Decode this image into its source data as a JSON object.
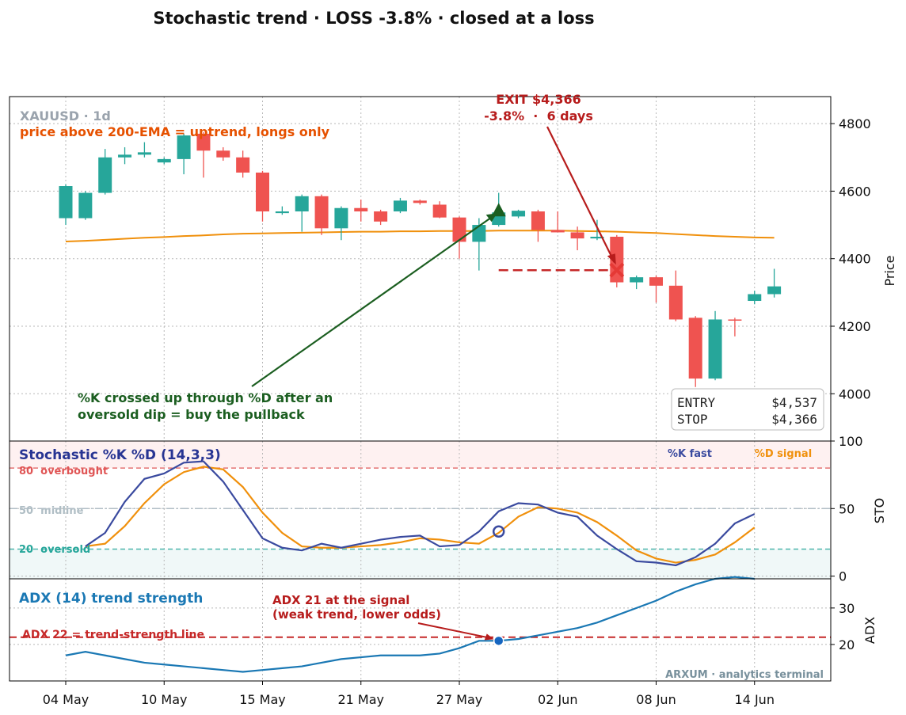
{
  "title": "Stochastic trend  ·  LOSS -3.8%  ·  closed at a loss",
  "colors": {
    "up": "#26a69a",
    "down": "#ef5350",
    "ema": "#f0900c",
    "k": "#3a4a9f",
    "d": "#f0900c",
    "adx": "#1a78b4",
    "accent_green": "#1b5e20",
    "accent_red": "#b71c1c",
    "brand": "#78909c"
  },
  "chart_data": [
    {
      "panel": "price",
      "type": "candlestick",
      "symbol_label": "XAUUSD · 1d",
      "subtitle": "price above 200-EMA = uptrend, longs only",
      "ylabel": "Price",
      "ylim": [
        3860,
        4880
      ],
      "yticks": [
        4000,
        4200,
        4400,
        4600,
        4800
      ],
      "grid": true,
      "x_tick_labels": [
        "04 May",
        "10 May",
        "15 May",
        "21 May",
        "27 May",
        "02 Jun",
        "08 Jun",
        "14 Jun"
      ],
      "x_tick_index": [
        0,
        5,
        10,
        15,
        20,
        25,
        30,
        35
      ],
      "candles": [
        {
          "o": 4520,
          "h": 4620,
          "l": 4500,
          "c": 4615
        },
        {
          "o": 4520,
          "h": 4600,
          "l": 4515,
          "c": 4595
        },
        {
          "o": 4595,
          "h": 4725,
          "l": 4590,
          "c": 4700
        },
        {
          "o": 4700,
          "h": 4730,
          "l": 4680,
          "c": 4708
        },
        {
          "o": 4708,
          "h": 4745,
          "l": 4700,
          "c": 4715
        },
        {
          "o": 4685,
          "h": 4700,
          "l": 4680,
          "c": 4695
        },
        {
          "o": 4695,
          "h": 4770,
          "l": 4650,
          "c": 4765
        },
        {
          "o": 4770,
          "h": 4775,
          "l": 4640,
          "c": 4720
        },
        {
          "o": 4720,
          "h": 4730,
          "l": 4690,
          "c": 4700
        },
        {
          "o": 4700,
          "h": 4720,
          "l": 4640,
          "c": 4655
        },
        {
          "o": 4655,
          "h": 4660,
          "l": 4510,
          "c": 4540
        },
        {
          "o": 4535,
          "h": 4555,
          "l": 4530,
          "c": 4540
        },
        {
          "o": 4540,
          "h": 4590,
          "l": 4480,
          "c": 4585
        },
        {
          "o": 4585,
          "h": 4590,
          "l": 4470,
          "c": 4490
        },
        {
          "o": 4490,
          "h": 4555,
          "l": 4455,
          "c": 4550
        },
        {
          "o": 4550,
          "h": 4575,
          "l": 4510,
          "c": 4540
        },
        {
          "o": 4540,
          "h": 4545,
          "l": 4500,
          "c": 4510
        },
        {
          "o": 4540,
          "h": 4580,
          "l": 4535,
          "c": 4572
        },
        {
          "o": 4572,
          "h": 4575,
          "l": 4560,
          "c": 4565
        },
        {
          "o": 4560,
          "h": 4570,
          "l": 4520,
          "c": 4522
        },
        {
          "o": 4522,
          "h": 4525,
          "l": 4400,
          "c": 4450
        },
        {
          "o": 4450,
          "h": 4520,
          "l": 4365,
          "c": 4500
        },
        {
          "o": 4500,
          "h": 4595,
          "l": 4495,
          "c": 4537
        },
        {
          "o": 4525,
          "h": 4545,
          "l": 4520,
          "c": 4542
        },
        {
          "o": 4540,
          "h": 4545,
          "l": 4450,
          "c": 4485
        },
        {
          "o": 4485,
          "h": 4540,
          "l": 4478,
          "c": 4478
        },
        {
          "o": 4478,
          "h": 4495,
          "l": 4425,
          "c": 4460
        },
        {
          "o": 4460,
          "h": 4515,
          "l": 4455,
          "c": 4465
        },
        {
          "o": 4465,
          "h": 4470,
          "l": 4315,
          "c": 4330
        },
        {
          "o": 4330,
          "h": 4350,
          "l": 4310,
          "c": 4345
        },
        {
          "o": 4345,
          "h": 4350,
          "l": 4270,
          "c": 4320
        },
        {
          "o": 4320,
          "h": 4365,
          "l": 4215,
          "c": 4220
        },
        {
          "o": 4225,
          "h": 4230,
          "l": 4020,
          "c": 4045
        },
        {
          "o": 4045,
          "h": 4245,
          "l": 4040,
          "c": 4220
        },
        {
          "o": 4220,
          "h": 4225,
          "l": 4170,
          "c": 4218
        },
        {
          "o": 4275,
          "h": 4305,
          "l": 4265,
          "c": 4295
        },
        {
          "o": 4295,
          "h": 4370,
          "l": 4285,
          "c": 4318
        }
      ],
      "ema200": [
        4451,
        4453,
        4456,
        4459,
        4462,
        4464,
        4467,
        4469,
        4472,
        4474,
        4475,
        4476,
        4477,
        4478,
        4479,
        4480,
        4480,
        4481,
        4481,
        4482,
        4482,
        4482,
        4483,
        4483,
        4483,
        4483,
        4482,
        4481,
        4480,
        4478,
        4476,
        4473,
        4470,
        4467,
        4465,
        4463,
        4462
      ],
      "entry": {
        "index": 22,
        "price": 4537
      },
      "exit": {
        "index": 28,
        "price": 4366,
        "label": "EXIT $4,366",
        "sublabel": "-3.8%  ·  6 days"
      },
      "stop_line": {
        "from_index": 22,
        "to_index": 28,
        "price": 4366
      },
      "annotation": "%K crossed up through %D after an oversold dip = buy the pullback",
      "info_box": [
        {
          "key": "ENTRY",
          "value": "$4,537"
        },
        {
          "key": "STOP",
          "value": "$4,366"
        }
      ]
    },
    {
      "panel": "stochastic",
      "type": "line",
      "title": "Stochastic %K %D (14,3,3)",
      "ylabel": "STO",
      "ylim": [
        -2,
        100
      ],
      "yticks": [
        0,
        50,
        100
      ],
      "levels": [
        {
          "value": 80,
          "label": "80  overbought"
        },
        {
          "value": 50,
          "label": "50  midline"
        },
        {
          "value": 20,
          "label": "20  oversold"
        }
      ],
      "series": [
        {
          "name": "%K fast",
          "values": [
            null,
            22,
            32,
            55,
            72,
            76,
            84,
            85,
            70,
            49,
            28,
            21,
            19,
            24,
            21,
            24,
            27,
            29,
            30,
            22,
            23,
            33,
            48,
            54,
            53,
            47,
            44,
            30,
            20,
            11,
            10,
            8,
            14,
            24,
            39,
            46
          ]
        },
        {
          "name": "%D signal",
          "values": [
            null,
            22,
            24,
            37,
            54,
            68,
            77,
            81,
            79,
            66,
            47,
            32,
            22,
            21,
            21,
            22,
            23,
            25,
            28,
            27,
            25,
            24,
            32,
            44,
            51,
            50,
            47,
            40,
            30,
            19,
            13,
            10,
            12,
            16,
            25,
            36
          ]
        }
      ],
      "marker": {
        "index": 22,
        "value": 33
      }
    },
    {
      "panel": "adx",
      "type": "line",
      "title": "ADX (14) trend strength",
      "ylabel": "ADX",
      "ylim": [
        10,
        38
      ],
      "yticks": [
        20,
        30
      ],
      "threshold": {
        "value": 22,
        "label": "ADX 22 = trend-strength line"
      },
      "series": [
        {
          "name": "ADX",
          "values": [
            17,
            18,
            17,
            16,
            15,
            14.5,
            14,
            13.5,
            13,
            12.5,
            13,
            13.5,
            14,
            15,
            16,
            16.5,
            17,
            17,
            17,
            17.5,
            19,
            21,
            21,
            21.5,
            22.5,
            23.5,
            24.5,
            26,
            28,
            30,
            32,
            34.5,
            36.5,
            38,
            38.5,
            38
          ]
        }
      ],
      "marker": {
        "index": 22,
        "value": 21
      },
      "annotation": "ADX 21 at the signal\n(weak trend, lower odds)",
      "watermark": "ARXUM · analytics terminal"
    }
  ]
}
